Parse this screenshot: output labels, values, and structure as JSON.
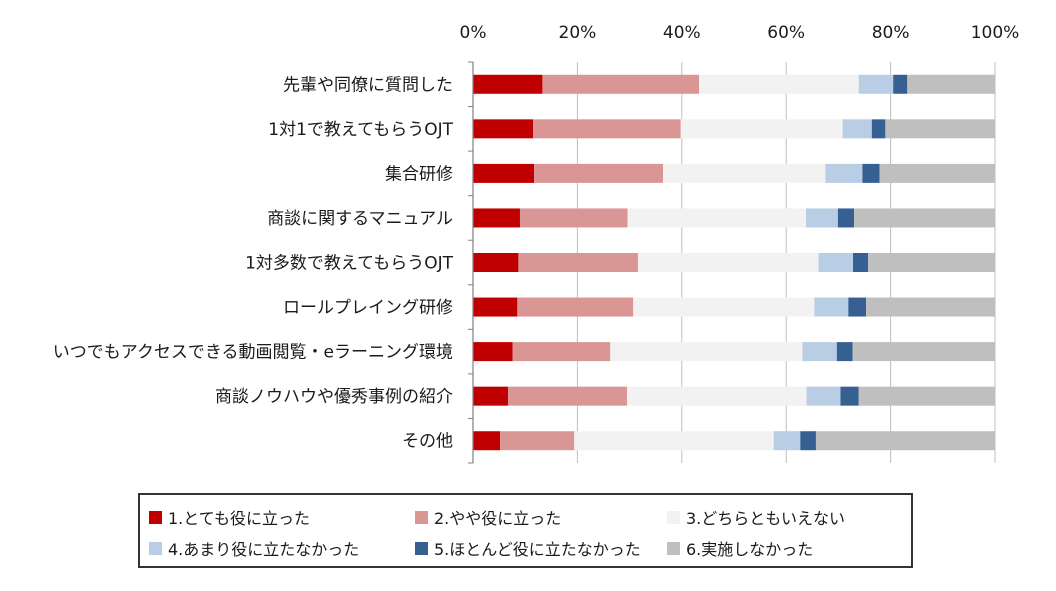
{
  "chart_data": {
    "type": "bar",
    "orientation": "horizontal",
    "stacked": true,
    "categories": [
      "先輩や同僚に質問した",
      "1対1で教えてもらうOJT",
      "集合研修",
      "商談に関するマニュアル",
      "1対多数で教えてもらうOJT",
      "ロールプレイング研修",
      "いつでもアクセスできる動画閲覧・eラーニング環境",
      "商談ノウハウや優秀事例の紹介",
      "その他"
    ],
    "series": [
      {
        "name": "1.とても役に立った",
        "color": "#c00000",
        "values": [
          13.3,
          11.5,
          11.7,
          9.0,
          8.7,
          8.5,
          7.6,
          6.7,
          5.2
        ]
      },
      {
        "name": "2.やや役に立った",
        "color": "#da9694",
        "values": [
          30.0,
          28.3,
          24.7,
          20.6,
          22.9,
          22.2,
          18.7,
          22.8,
          14.2
        ]
      },
      {
        "name": "3.どちらともいえない",
        "color": "#f2f2f2",
        "values": [
          30.6,
          31.0,
          31.1,
          34.2,
          34.6,
          34.7,
          36.8,
          34.4,
          38.2
        ]
      },
      {
        "name": "4.あまり役に立たなかった",
        "color": "#b9cde5",
        "values": [
          6.6,
          5.6,
          7.1,
          6.1,
          6.6,
          6.5,
          6.6,
          6.5,
          5.1
        ]
      },
      {
        "name": "5.ほとんど役に立たなかった",
        "color": "#376092",
        "values": [
          2.7,
          2.6,
          3.3,
          3.1,
          2.9,
          3.4,
          3.0,
          3.5,
          3.0
        ]
      },
      {
        "name": "6.実施しなかった",
        "color": "#bfbfbf",
        "values": [
          16.8,
          21.0,
          22.1,
          27.0,
          24.3,
          24.7,
          27.3,
          26.1,
          34.3
        ]
      }
    ],
    "xlim": [
      0,
      100
    ],
    "xticks": [
      "0%",
      "20%",
      "40%",
      "60%",
      "80%",
      "100%"
    ],
    "xtick_values": [
      0,
      20,
      40,
      60,
      80,
      100
    ],
    "grid": true,
    "legend_position": "bottom",
    "title": "",
    "xlabel": "",
    "ylabel": ""
  }
}
